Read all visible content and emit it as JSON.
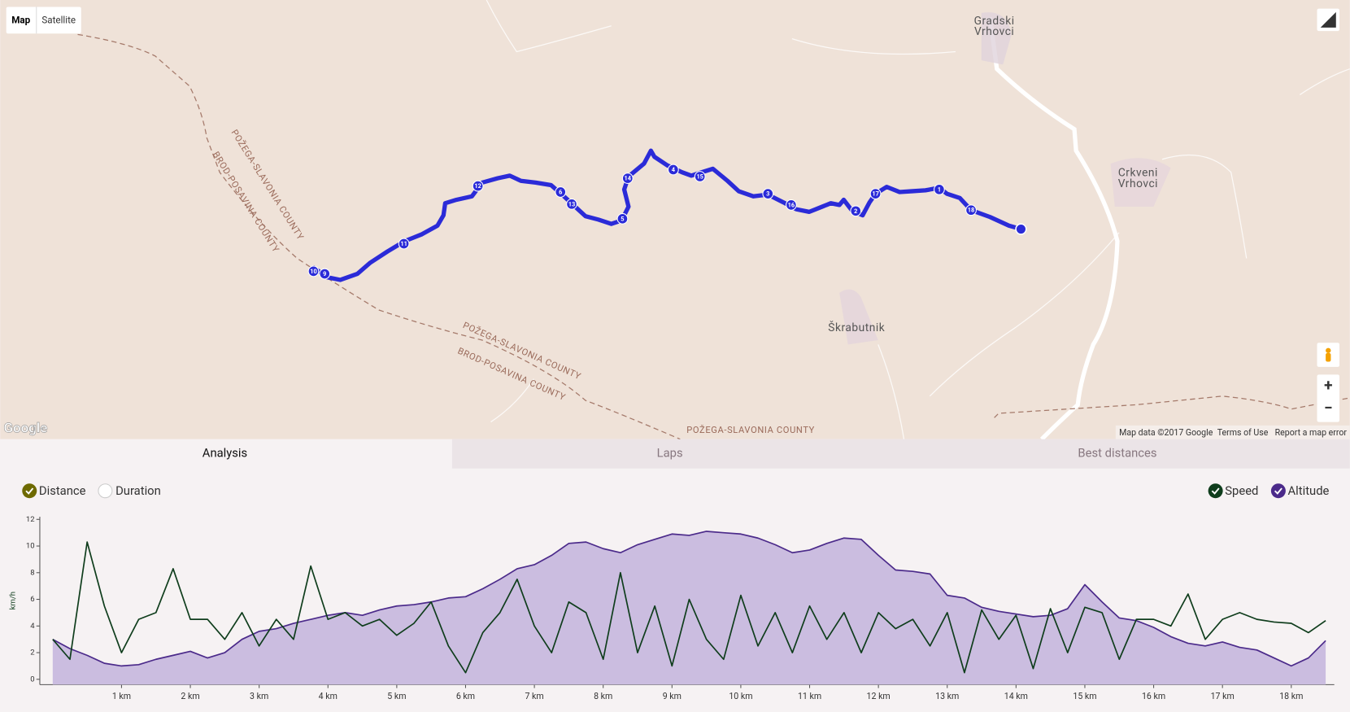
{
  "map": {
    "buttons": [
      "Map",
      "Satellite"
    ],
    "places": [
      "Gradski",
      "Vrhovci",
      "Crkveni",
      "Vrhovci",
      "Škrabutnik"
    ],
    "counties": [
      "POŽEGA-SLAVONIA COUNTY",
      "BROD-POSAVINA COUNTY",
      "POŽEGA-SLAVONIA COUNTY",
      "BROD-POSAVINA COUNTY",
      "POŽEGA-SLAVONIA COUNTY"
    ],
    "markers": [
      "10",
      "9",
      "11",
      "12",
      "6",
      "13",
      "5",
      "14",
      "4",
      "15",
      "3",
      "16",
      "2",
      "17",
      "1",
      "18"
    ],
    "logo": "Google",
    "attribution": "Map data ©2017 Google",
    "terms": "Terms of Use",
    "report": "Report a map error"
  },
  "tabs": [
    "Analysis",
    "Laps",
    "Best distances"
  ],
  "x_modes": [
    "Distance",
    "Duration"
  ],
  "chart_data": {
    "type": "line",
    "y_label": "km/h",
    "x": [
      0,
      0.25,
      0.5,
      0.75,
      1,
      1.25,
      1.5,
      1.75,
      2,
      2.25,
      2.5,
      2.75,
      3,
      3.25,
      3.5,
      3.75,
      4,
      4.25,
      4.5,
      4.75,
      5,
      5.25,
      5.5,
      5.75,
      6,
      6.25,
      6.5,
      6.75,
      7,
      7.25,
      7.5,
      7.75,
      8,
      8.25,
      8.5,
      8.75,
      9,
      9.25,
      9.5,
      9.75,
      10,
      10.25,
      10.5,
      10.75,
      11,
      11.25,
      11.5,
      11.75,
      12,
      12.25,
      12.5,
      12.75,
      13,
      13.25,
      13.5,
      13.75,
      14,
      14.25,
      14.5,
      14.75,
      15,
      15.25,
      15.5,
      15.75,
      16,
      16.25,
      16.5,
      16.75,
      17,
      17.25,
      17.5,
      17.75,
      18,
      18.25,
      18.5
    ],
    "series": [
      {
        "name": "Speed",
        "color": "#0f3d1c",
        "values": [
          3.0,
          1.5,
          10.3,
          5.5,
          2.0,
          4.5,
          5.0,
          8.3,
          4.5,
          4.5,
          3.0,
          5.0,
          2.5,
          4.5,
          3.0,
          8.5,
          4.5,
          5.0,
          4.0,
          4.5,
          3.3,
          4.2,
          5.8,
          2.5,
          0.5,
          3.5,
          5.0,
          7.5,
          4.0,
          2.0,
          5.8,
          5.0,
          1.5,
          8.0,
          2.0,
          5.5,
          1.0,
          6.0,
          3.0,
          1.5,
          6.3,
          2.5,
          5.0,
          2.0,
          5.5,
          3.0,
          5.0,
          2.0,
          5.0,
          3.8,
          4.5,
          2.5,
          5.0,
          0.5,
          5.2,
          3.0,
          4.8,
          0.8,
          5.3,
          2.0,
          5.4,
          5.0,
          1.5,
          4.5,
          4.5,
          4.0,
          6.4,
          3.0,
          4.5,
          5.0,
          4.5,
          4.3,
          4.2,
          3.5,
          4.4
        ]
      },
      {
        "name": "Altitude",
        "color": "#4b2a8a",
        "fill": "#cbbde0",
        "values": [
          3.0,
          2.3,
          1.8,
          1.2,
          1.0,
          1.1,
          1.5,
          1.8,
          2.1,
          1.6,
          2.0,
          3.0,
          3.6,
          3.8,
          4.2,
          4.5,
          4.8,
          5.0,
          4.8,
          5.2,
          5.5,
          5.6,
          5.8,
          6.1,
          6.2,
          6.8,
          7.5,
          8.3,
          8.6,
          9.3,
          10.2,
          10.3,
          9.8,
          9.5,
          10.1,
          10.5,
          10.9,
          10.8,
          11.1,
          11.0,
          10.9,
          10.6,
          10.1,
          9.5,
          9.7,
          10.2,
          10.6,
          10.5,
          9.3,
          8.2,
          8.1,
          7.9,
          6.3,
          6.1,
          5.4,
          5.1,
          4.9,
          4.7,
          4.8,
          5.3,
          7.1,
          5.8,
          4.6,
          4.4,
          3.9,
          3.2,
          2.7,
          2.5,
          2.8,
          2.4,
          2.2,
          1.6,
          1.0,
          1.6,
          2.9
        ]
      }
    ],
    "xlim": [
      0,
      18.5
    ],
    "xticks": [
      {
        "value": 1,
        "label": "1 km"
      },
      {
        "value": 2,
        "label": "2 km"
      },
      {
        "value": 3,
        "label": "3 km"
      },
      {
        "value": 4,
        "label": "4 km"
      },
      {
        "value": 5,
        "label": "5 km"
      },
      {
        "value": 6,
        "label": "6 km"
      },
      {
        "value": 7,
        "label": "7 km"
      },
      {
        "value": 8,
        "label": "8 km"
      },
      {
        "value": 9,
        "label": "9 km"
      },
      {
        "value": 10,
        "label": "10 km"
      },
      {
        "value": 11,
        "label": "11 km"
      },
      {
        "value": 12,
        "label": "12 km"
      },
      {
        "value": 13,
        "label": "13 km"
      },
      {
        "value": 14,
        "label": "14 km"
      },
      {
        "value": 15,
        "label": "15 km"
      },
      {
        "value": 16,
        "label": "16 km"
      },
      {
        "value": 17,
        "label": "17 km"
      },
      {
        "value": 18,
        "label": "18 km"
      }
    ],
    "ylim": [
      -0.4,
      12.2
    ],
    "yticks": [
      0,
      2,
      4,
      6,
      8,
      10,
      12
    ]
  }
}
